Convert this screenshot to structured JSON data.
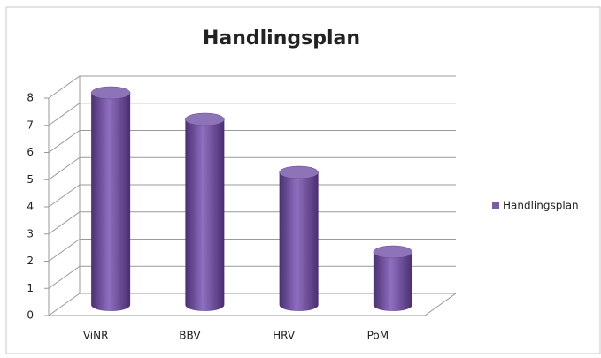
{
  "chart_data": {
    "type": "bar",
    "title": "Handlingsplan",
    "categories": [
      "ViNR",
      "BBV",
      "HRV",
      "PoM"
    ],
    "series": [
      {
        "name": "Handlingsplan",
        "color": "#7a5ba8",
        "values": [
          8,
          7,
          5,
          2
        ]
      }
    ],
    "ylim": [
      0,
      8
    ],
    "yticks": [
      0,
      1,
      2,
      3,
      4,
      5,
      6,
      7,
      8
    ],
    "grid": true,
    "legend": "right"
  }
}
